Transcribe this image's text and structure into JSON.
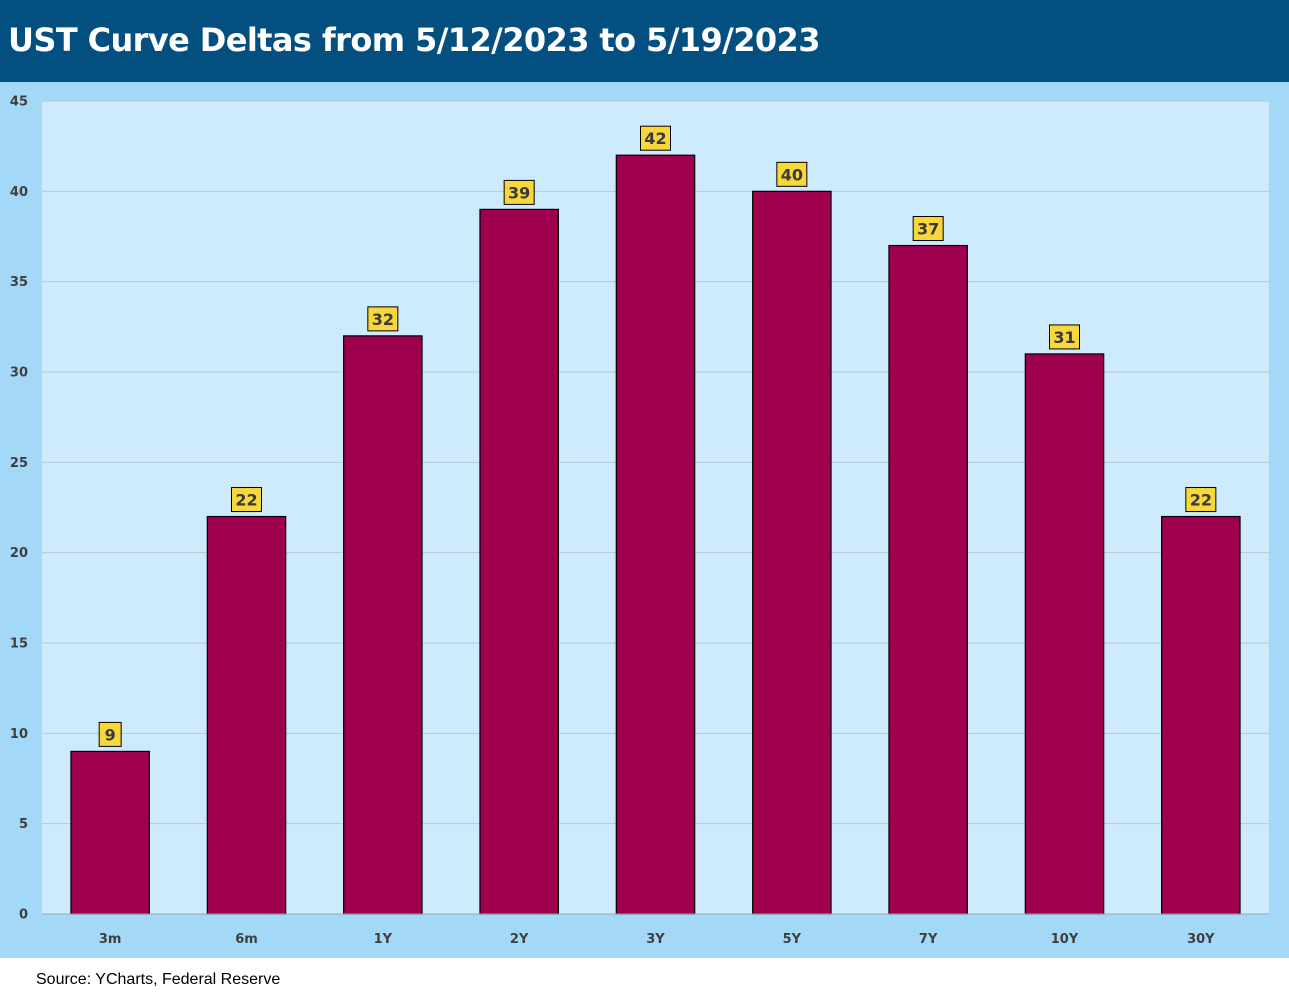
{
  "header": {
    "title": "UST Curve Deltas from 5/12/2023 to 5/19/2023"
  },
  "footer": {
    "source": "Source: YCharts, Federal Reserve"
  },
  "colors": {
    "title_bar": "#034f80",
    "chart_border": "#a3d8f7",
    "plot_area": "#cdebfd",
    "bar_fill": "#9e004e",
    "data_label_fill": "#f7d73a",
    "gridline": "#b7c8d2"
  },
  "chart_data": {
    "type": "bar",
    "title": "UST Curve Deltas from 5/12/2023 to 5/19/2023",
    "categories": [
      "3m",
      "6m",
      "1Y",
      "2Y",
      "3Y",
      "5Y",
      "7Y",
      "10Y",
      "30Y"
    ],
    "values": [
      9,
      22,
      32,
      39,
      42,
      40,
      37,
      31,
      22
    ],
    "ylim": [
      0,
      45
    ],
    "yticks": [
      0,
      5,
      10,
      15,
      20,
      25,
      30,
      35,
      40,
      45
    ],
    "xlabel": "",
    "ylabel": "",
    "grid": true,
    "legend": "none",
    "data_labels": true
  }
}
